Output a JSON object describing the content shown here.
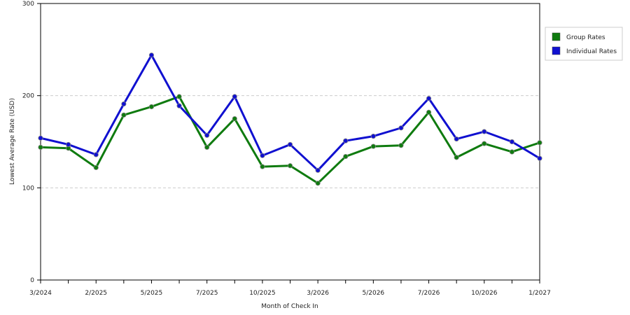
{
  "chart_data": {
    "type": "line",
    "x_label": "Month of Check In",
    "y_label": "Lowest Average Rate (USD)",
    "categories": [
      "3/2024",
      null,
      "2/2025",
      null,
      "5/2025",
      null,
      "7/2025",
      null,
      "10/2025",
      null,
      "3/2026",
      null,
      "5/2026",
      null,
      "7/2026",
      null,
      "10/2026",
      null,
      "1/2027"
    ],
    "series": [
      {
        "name": "Group Rates",
        "color": "#0f7b0f",
        "values": [
          144,
          143,
          122,
          179,
          188,
          199,
          144,
          175,
          123,
          124,
          105,
          134,
          145,
          146,
          182,
          133,
          148,
          139,
          149
        ]
      },
      {
        "name": "Individual Rates",
        "color": "#1010d0",
        "values": [
          154,
          147,
          136,
          191,
          244,
          189,
          157,
          199,
          135,
          147,
          119,
          151,
          156,
          165,
          197,
          153,
          161,
          150,
          132
        ]
      }
    ],
    "ylim": [
      0,
      300
    ],
    "yticks": [
      0,
      100,
      200,
      300
    ],
    "grid": true,
    "legend": "right"
  }
}
